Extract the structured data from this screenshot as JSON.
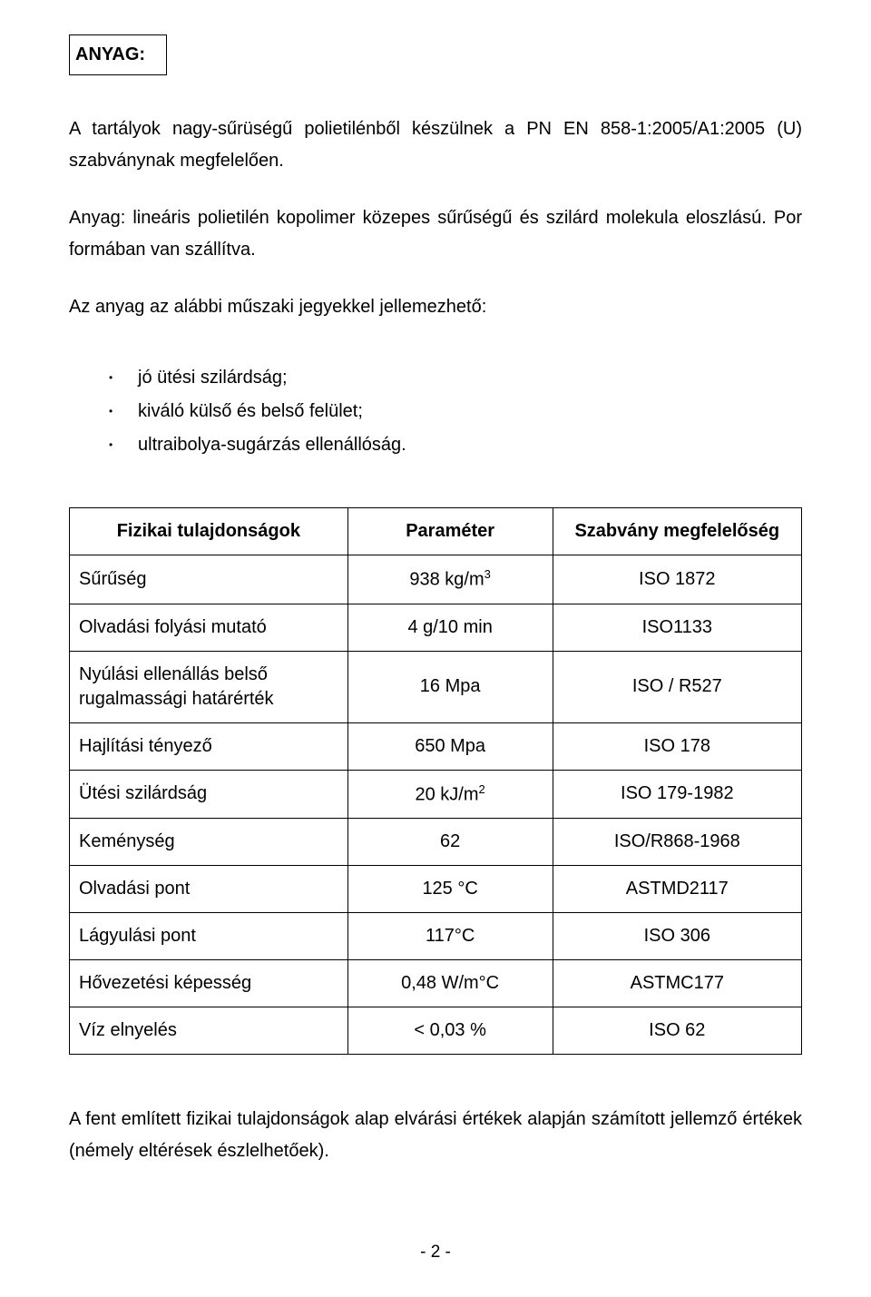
{
  "header": {
    "title": "ANYAG:"
  },
  "paragraphs": {
    "p1": "A tartályok nagy-sűrüségű polietilénből készülnek a PN EN 858-1:2005/A1:2005 (U) szabványnak megfelelően.",
    "p2": "Anyag: lineáris polietilén kopolimer közepes sűrűségű és szilárd molekula eloszlású. Por formában van szállítva.",
    "p3": "Az anyag az alábbi műszaki jegyekkel jellemezhető:",
    "footer": "A fent említett fizikai tulajdonságok alap elvárási értékek alapján számított   jellemző értékek (némely eltérések észlelhetőek)."
  },
  "bullets": [
    "jó ütési szilárdság;",
    "kiváló külső és belső felület;",
    "ultraibolya-sugárzás ellenállóság."
  ],
  "table": {
    "headers": [
      "Fizikai tulajdonságok",
      "Paraméter",
      "Szabvány megfelelőség"
    ],
    "rows": [
      {
        "prop": "Sűrűség",
        "param": "938 kg/m",
        "param_sup": "3",
        "std": "ISO 1872"
      },
      {
        "prop": "Olvadási folyási mutató",
        "param": "4 g/10 min",
        "param_sup": "",
        "std": "ISO1133"
      },
      {
        "prop": "Nyúlási ellenállás belső rugalmassági határérték",
        "param": "16 Mpa",
        "param_sup": "",
        "std": "ISO / R527"
      },
      {
        "prop": "Hajlítási tényező",
        "param": "650 Mpa",
        "param_sup": "",
        "std": "ISO 178"
      },
      {
        "prop": "Ütési szilárdság",
        "param": "20 kJ/m",
        "param_sup": "2",
        "std": "ISO 179-1982"
      },
      {
        "prop": "Keménység",
        "param": "62",
        "param_sup": "",
        "std": "ISO/R868-1968"
      },
      {
        "prop": "Olvadási pont",
        "param": "125 °C",
        "param_sup": "",
        "std": "ASTMD2117"
      },
      {
        "prop": "Lágyulási pont",
        "param": "117°C",
        "param_sup": "",
        "std": "ISO 306"
      },
      {
        "prop": "Hővezetési képesség",
        "param": "0,48 W/m°C",
        "param_sup": "",
        "std": "ASTMC177"
      },
      {
        "prop": "Víz elnyelés",
        "param": "< 0,03 %",
        "param_sup": "",
        "std": "ISO 62"
      }
    ]
  },
  "page_number": "- 2 -"
}
